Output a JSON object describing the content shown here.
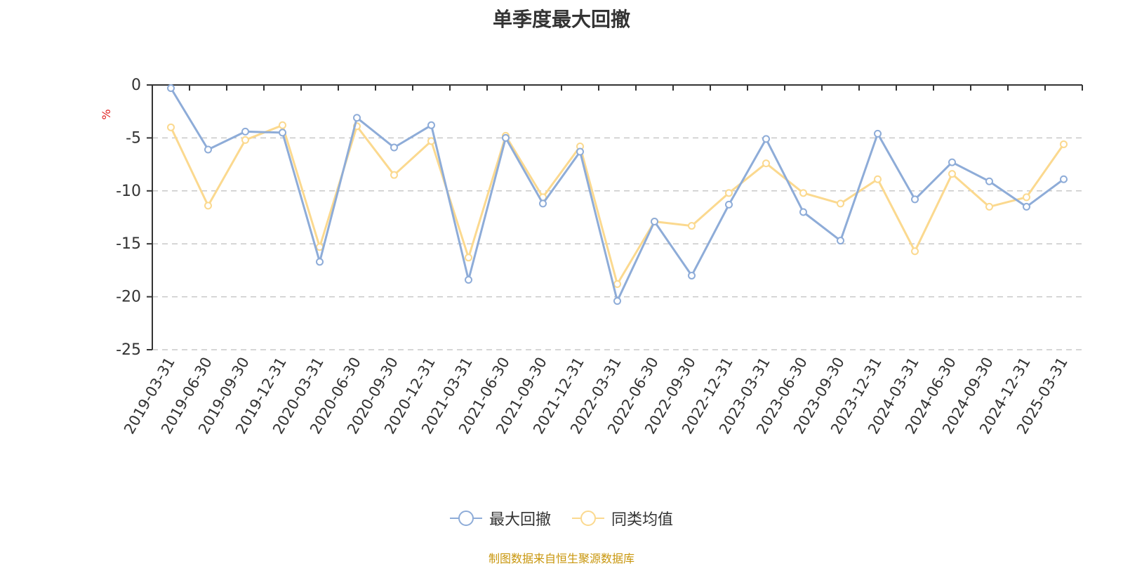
{
  "chart_data": {
    "type": "line",
    "title": "单季度最大回撤",
    "ylabel": "%",
    "ylim": [
      -25,
      0
    ],
    "yticks": [
      0,
      -5,
      -10,
      -15,
      -20,
      -25
    ],
    "grid": true,
    "legend_position": "bottom-center",
    "x": [
      "2019-03-31",
      "2019-06-30",
      "2019-09-30",
      "2019-12-31",
      "2020-03-31",
      "2020-06-30",
      "2020-09-30",
      "2020-12-31",
      "2021-03-31",
      "2021-06-30",
      "2021-09-30",
      "2021-12-31",
      "2022-03-31",
      "2022-06-30",
      "2022-09-30",
      "2022-12-31",
      "2023-03-31",
      "2023-06-30",
      "2023-09-30",
      "2023-12-31",
      "2024-03-31",
      "2024-06-30",
      "2024-09-30",
      "2024-12-31",
      "2025-03-31"
    ],
    "series": [
      {
        "name": "最大回撤",
        "color": "#8eacd8",
        "values": [
          -0.3,
          -6.1,
          -4.4,
          -4.5,
          -16.7,
          -3.1,
          -5.9,
          -3.8,
          -18.4,
          -5.0,
          -11.2,
          -6.3,
          -20.4,
          -12.9,
          -18.0,
          -11.3,
          -5.1,
          -12.0,
          -14.7,
          -4.6,
          -10.8,
          -7.3,
          -9.1,
          -11.5,
          -8.9
        ]
      },
      {
        "name": "同类均值",
        "color": "#fbd98f",
        "values": [
          -4.0,
          -11.4,
          -5.2,
          -3.8,
          -15.3,
          -3.9,
          -8.5,
          -5.3,
          -16.3,
          -4.8,
          -10.6,
          -5.8,
          -18.8,
          -12.9,
          -13.3,
          -10.2,
          -7.4,
          -10.2,
          -11.2,
          -8.9,
          -15.7,
          -8.4,
          -11.5,
          -10.6,
          -5.6
        ]
      }
    ]
  },
  "source_note": "制图数据来自恒生聚源数据库"
}
